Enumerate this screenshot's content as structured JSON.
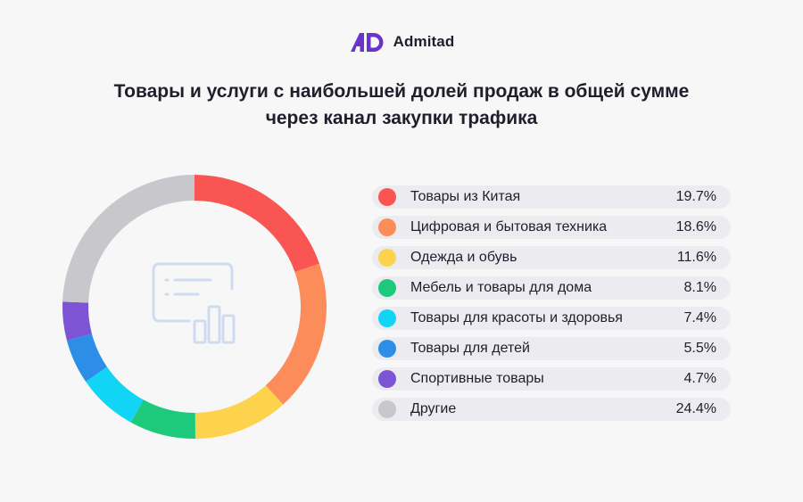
{
  "brand": {
    "name": "Admitad",
    "logo_color": "#6a33cc"
  },
  "title": {
    "line1": "Товары и услуги с наибольшей долей продаж в общей сумме",
    "line2": "через канал закупки трафика"
  },
  "center_icon": "dashboard-chart-icon",
  "chart_data": {
    "type": "pie",
    "variant": "donut",
    "title": "Товары и услуги с наибольшей долей продаж в общей сумме через канал закупки трафика",
    "legend_position": "right",
    "categories": [
      "Товары из Китая",
      "Цифровая и бытовая техника",
      "Одежда и обувь",
      "Мебель и товары для дома",
      "Товары для красоты и здоровья",
      "Товары для детей",
      "Спортивные товары",
      "Другие"
    ],
    "values": [
      19.7,
      18.6,
      11.6,
      8.1,
      7.4,
      5.5,
      4.7,
      24.4
    ],
    "labels": [
      "19.7%",
      "18.6%",
      "11.6%",
      "8.1%",
      "7.4%",
      "5.5%",
      "4.7%",
      "24.4%"
    ],
    "colors": [
      "#f95553",
      "#fd8c5b",
      "#fdd24d",
      "#1dc97a",
      "#12d4f5",
      "#2c8ee6",
      "#7c54d4",
      "#c8c8cc"
    ]
  }
}
